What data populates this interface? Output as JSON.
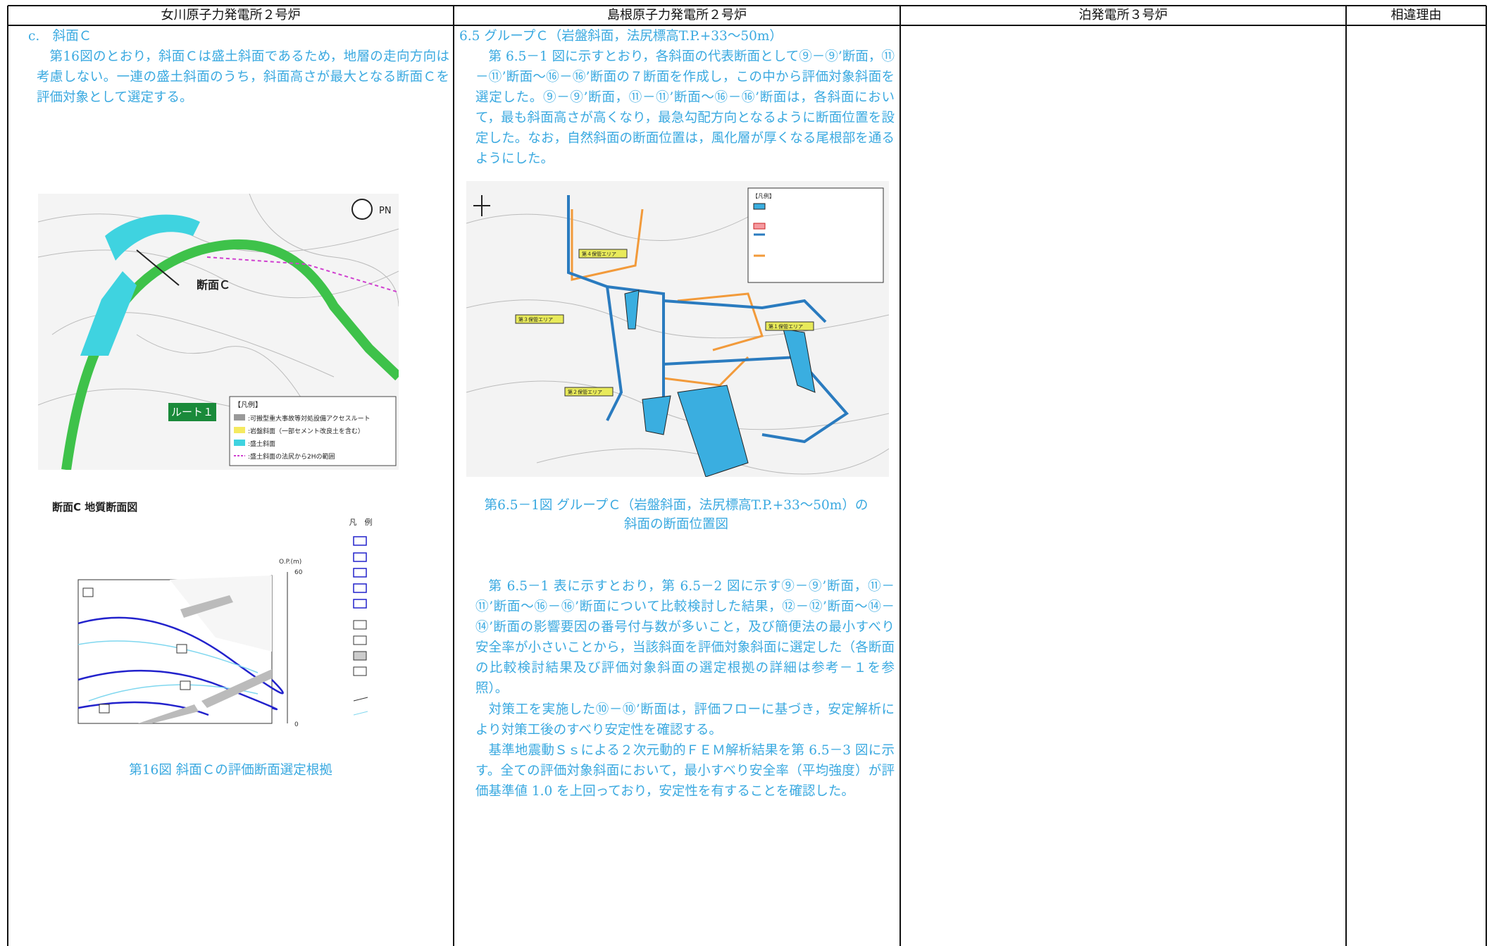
{
  "header": [
    "女川原子力発電所２号炉",
    "島根原子力発電所２号炉",
    "泊発電所３号炉",
    "相違理由"
  ],
  "onagawa": {
    "heading": "c.　斜面Ｃ",
    "paragraph": "第16図のとおり，斜面Ｃは盛土斜面であるため，地層の走向方向は考慮しない。一連の盛土斜面のうち，斜面高さが最大となる断面Ｃを評価対象として選定する。",
    "map": {
      "section_label": "断面Ｃ",
      "north": "PN",
      "route": "ルート１",
      "legend_title": "【凡例】",
      "legend_items": [
        ":可搬型重大事故等対処設備アクセスルート",
        ":岩盤斜面（一部セメント改良土を含む）",
        ":盛土斜面",
        ":盛土斜面の法尻から2Hの範囲"
      ]
    },
    "section": {
      "title": "断面C 地質断面図",
      "legend_title": "凡　例",
      "axis_label": "O.P.(m)",
      "axis_ticks": [
        "60",
        "0"
      ]
    },
    "caption": "第16図 斜面Ｃの評価断面選定根拠"
  },
  "shimane": {
    "heading": "6.5 グループＣ（岩盤斜面，法尻標高T.P.+33～50m）",
    "paragraph1": "第 6.5－1 図に示すとおり，各斜面の代表断面として⑨－⑨’断面，⑪－⑪’断面～⑯－⑯’断面の７断面を作成し，この中から評価対象斜面を選定した。⑨－⑨’断面，⑪－⑪’断面～⑯－⑯’断面は，各斜面において，最も斜面高さが高くなり，最急勾配方向となるように断面位置を設定した。なお，自然斜面の断面位置は，風化層が厚くなる尾根部を通るようにした。",
    "map": {
      "legend_title": "【凡例】",
      "areas": [
        "第４保管エリア",
        "第３保管エリア",
        "第１保管エリア",
        "第２保管エリア"
      ]
    },
    "caption": [
      "第6.5－1図 グループＣ（岩盤斜面，法尻標高T.P.+33～50m）の",
      "斜面の断面位置図"
    ],
    "paragraph2": "第 6.5－1 表に示すとおり，第 6.5－2 図に示す⑨－⑨’断面，⑪－⑪’断面～⑯－⑯’断面について比較検討した結果，⑫－⑫’断面～⑭－⑭’断面の影響要因の番号付与数が多いこと，及び簡便法の最小すべり安全率が小さいことから，当該斜面を評価対象斜面に選定した（各断面の比較検討結果及び評価対象斜面の選定根拠の詳細は参考－１を参照）。",
    "paragraph3": "対策工を実施した⑩－⑩’断面は，評価フローに基づき，安定解析により対策工後のすべり安定性を確認する。",
    "paragraph4": "基準地震動Ｓｓによる２次元動的ＦＥＭ解析結果を第 6.5－3 図に示す。全ての評価対象斜面において，最小すべり安全率（平均強度）が評価基準値 1.0 を上回っており，安定性を有することを確認した。"
  }
}
